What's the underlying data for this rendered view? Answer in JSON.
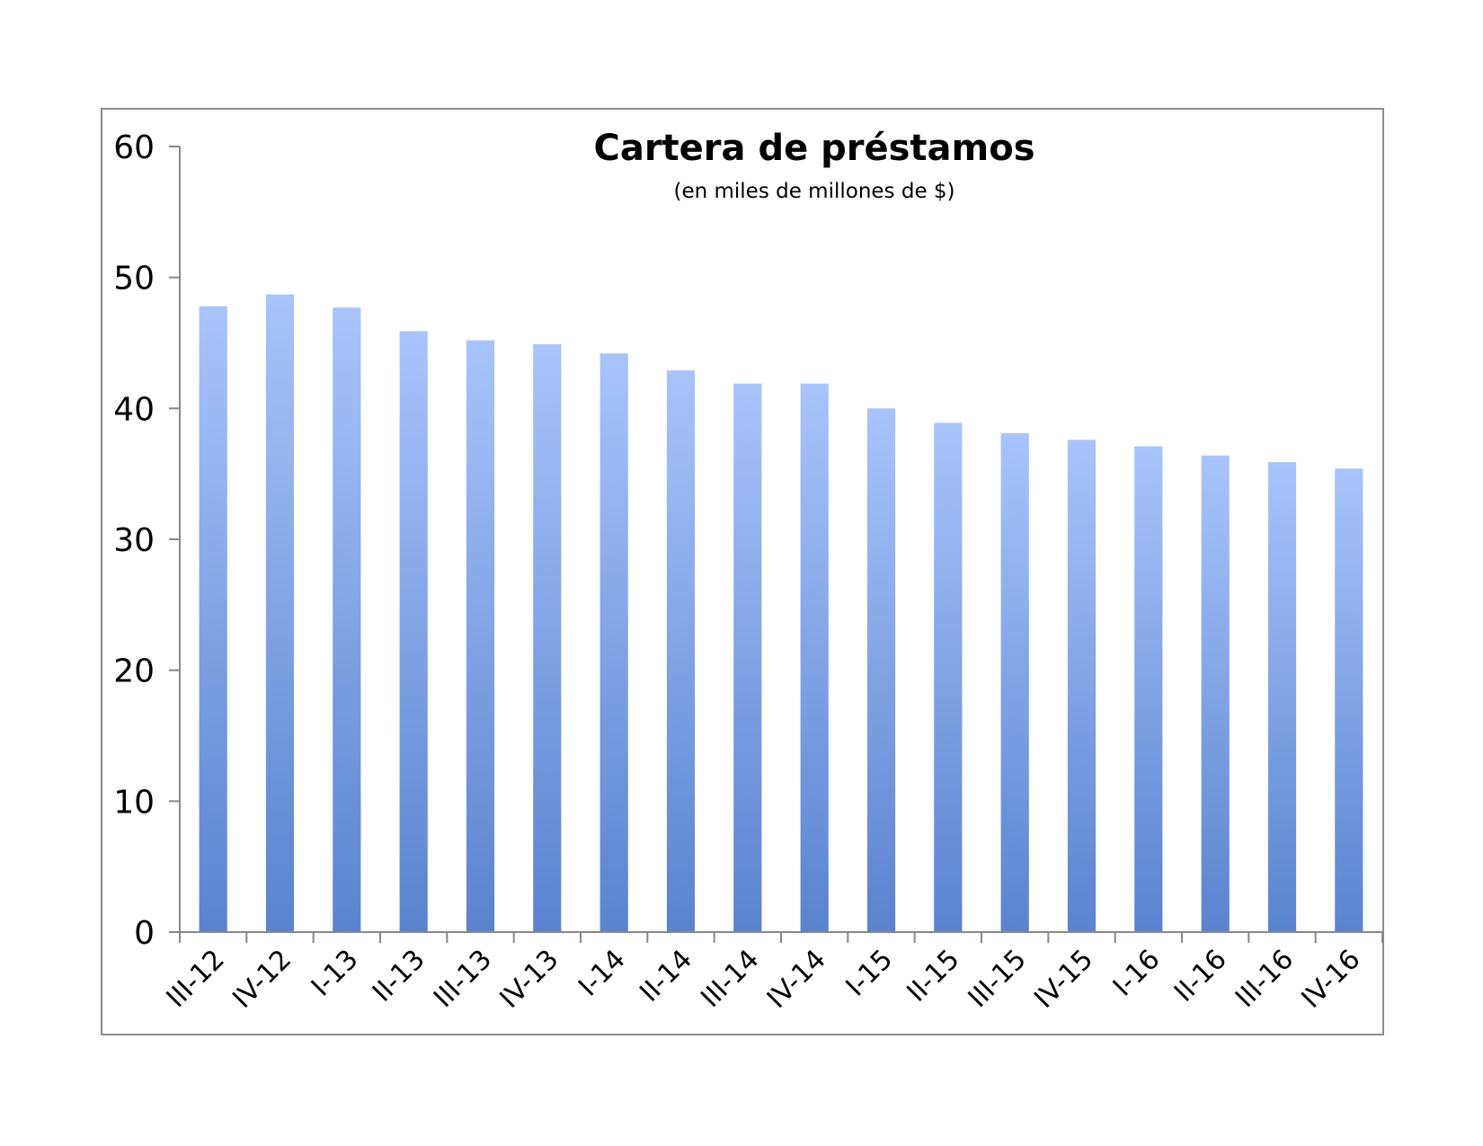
{
  "chart_data": {
    "type": "bar",
    "title": "Cartera de préstamos",
    "subtitle": "(en miles de millones de $)",
    "xlabel": "",
    "ylabel": "",
    "ylim": [
      0,
      60
    ],
    "yticks": [
      0,
      10,
      20,
      30,
      40,
      50,
      60
    ],
    "grid": false,
    "legend": "none",
    "categories": [
      "III-12",
      "IV-12",
      "I-13",
      "II-13",
      "III-13",
      "IV-13",
      "I-14",
      "II-14",
      "III-14",
      "IV-14",
      "I-15",
      "II-15",
      "III-15",
      "IV-15",
      "I-16",
      "II-16",
      "III-16",
      "IV-16"
    ],
    "values": [
      47.8,
      48.7,
      47.7,
      45.9,
      45.2,
      44.9,
      44.2,
      42.9,
      41.9,
      41.9,
      40.0,
      38.9,
      38.1,
      37.6,
      37.1,
      36.4,
      35.9,
      35.4
    ],
    "colors": {
      "bar_top": "#a9c4fb",
      "bar_bottom": "#5a83cf",
      "axis": "#888888",
      "frame": "#8c8c8c",
      "text": "#000000"
    }
  }
}
